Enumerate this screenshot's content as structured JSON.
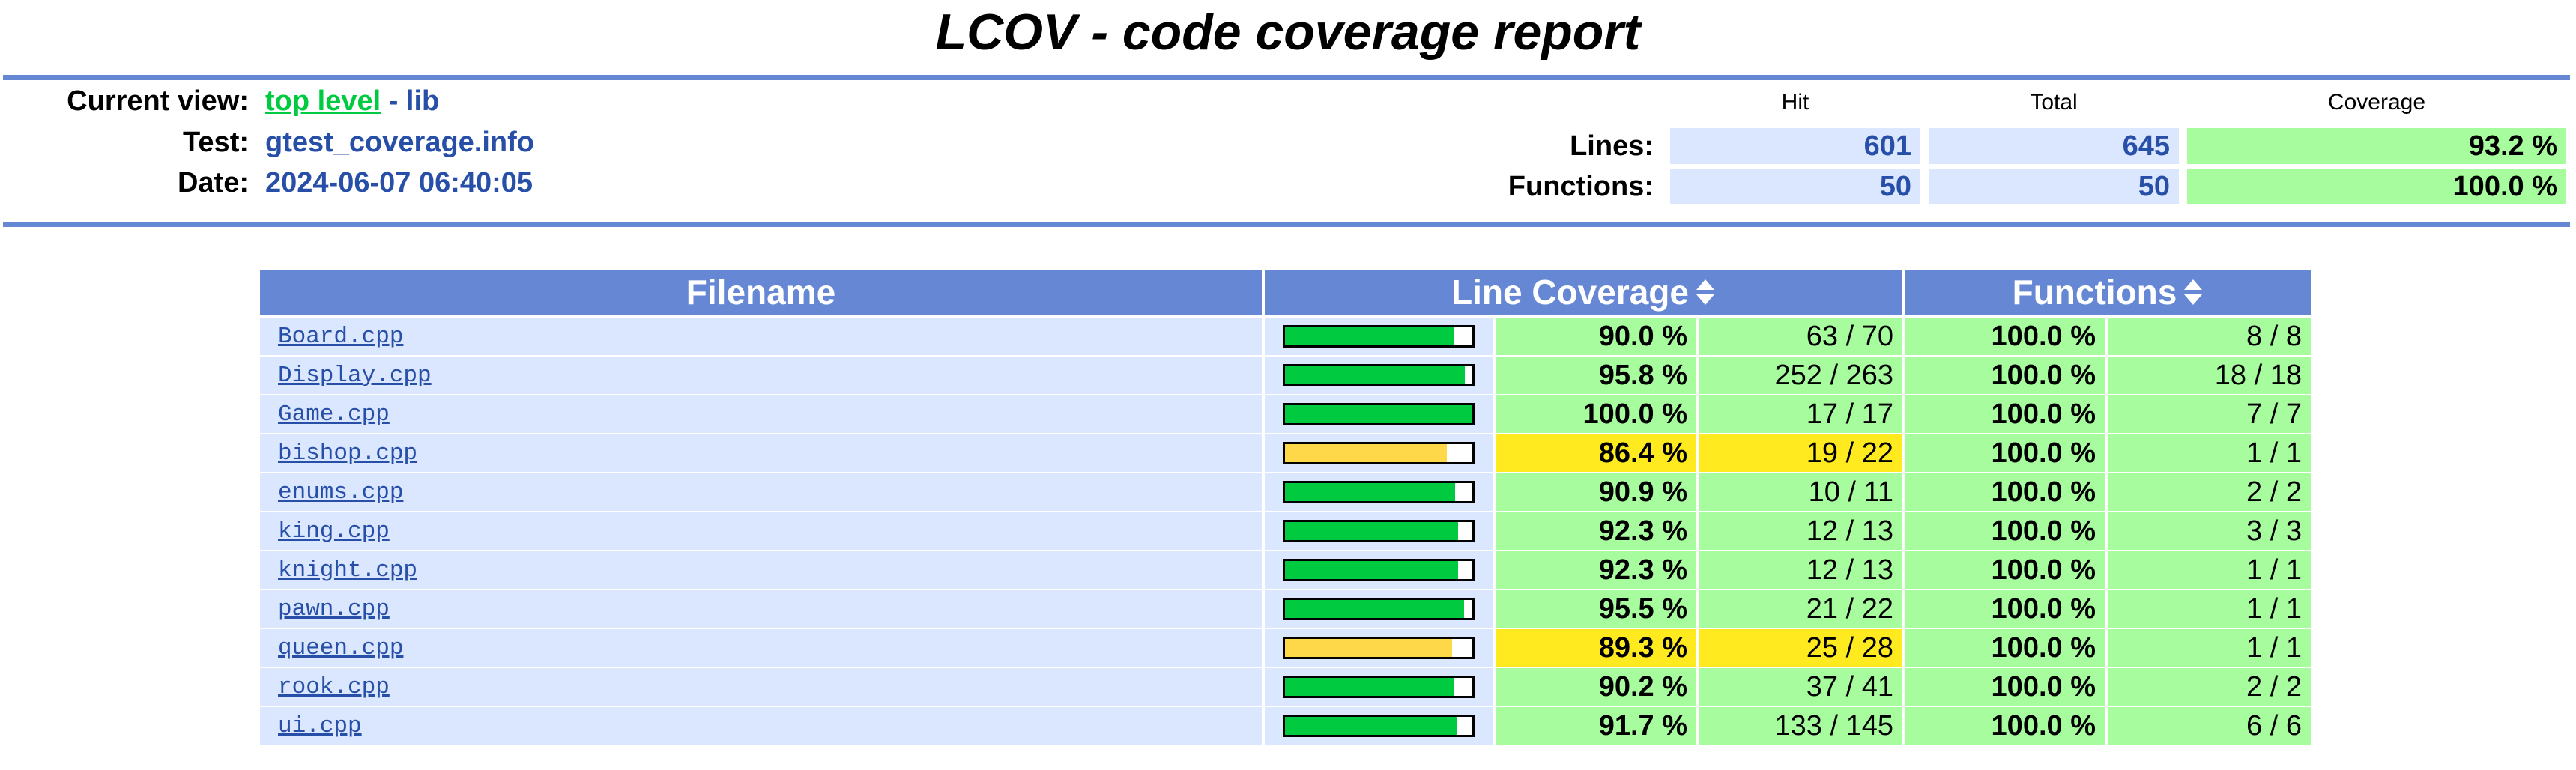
{
  "header": {
    "title": "LCOV - code coverage report",
    "current_view_label": "Current view:",
    "current_view_link": "top level",
    "current_view_rest": "- lib",
    "test_label": "Test:",
    "test_value": "gtest_coverage.info",
    "date_label": "Date:",
    "date_value": "2024-06-07 06:40:05"
  },
  "summary": {
    "columns": [
      "Hit",
      "Total",
      "Coverage"
    ],
    "rows": [
      {
        "label": "Lines:",
        "hit": "601",
        "total": "645",
        "coverage": "93.2 %"
      },
      {
        "label": "Functions:",
        "hit": "50",
        "total": "50",
        "coverage": "100.0 %"
      }
    ]
  },
  "table": {
    "columns": [
      "Filename",
      "Line Coverage",
      "Functions"
    ],
    "rows": [
      {
        "file": "Board.cpp",
        "line_pct": {
          "value": 90.0,
          "label": "90.0 %"
        },
        "line_count": "63 / 70",
        "func_pct": "100.0 %",
        "func_count": "8 / 8",
        "level": "high"
      },
      {
        "file": "Display.cpp",
        "line_pct": {
          "value": 95.8,
          "label": "95.8 %"
        },
        "line_count": "252 / 263",
        "func_pct": "100.0 %",
        "func_count": "18 / 18",
        "level": "high"
      },
      {
        "file": "Game.cpp",
        "line_pct": {
          "value": 100.0,
          "label": "100.0 %"
        },
        "line_count": "17 / 17",
        "func_pct": "100.0 %",
        "func_count": "7 / 7",
        "level": "high"
      },
      {
        "file": "bishop.cpp",
        "line_pct": {
          "value": 86.4,
          "label": "86.4 %"
        },
        "line_count": "19 / 22",
        "func_pct": "100.0 %",
        "func_count": "1 / 1",
        "level": "medium"
      },
      {
        "file": "enums.cpp",
        "line_pct": {
          "value": 90.9,
          "label": "90.9 %"
        },
        "line_count": "10 / 11",
        "func_pct": "100.0 %",
        "func_count": "2 / 2",
        "level": "high"
      },
      {
        "file": "king.cpp",
        "line_pct": {
          "value": 92.3,
          "label": "92.3 %"
        },
        "line_count": "12 / 13",
        "func_pct": "100.0 %",
        "func_count": "3 / 3",
        "level": "high"
      },
      {
        "file": "knight.cpp",
        "line_pct": {
          "value": 92.3,
          "label": "92.3 %"
        },
        "line_count": "12 / 13",
        "func_pct": "100.0 %",
        "func_count": "1 / 1",
        "level": "high"
      },
      {
        "file": "pawn.cpp",
        "line_pct": {
          "value": 95.5,
          "label": "95.5 %"
        },
        "line_count": "21 / 22",
        "func_pct": "100.0 %",
        "func_count": "1 / 1",
        "level": "high"
      },
      {
        "file": "queen.cpp",
        "line_pct": {
          "value": 89.3,
          "label": "89.3 %"
        },
        "line_count": "25 / 28",
        "func_pct": "100.0 %",
        "func_count": "1 / 1",
        "level": "medium"
      },
      {
        "file": "rook.cpp",
        "line_pct": {
          "value": 90.2,
          "label": "90.2 %"
        },
        "line_count": "37 / 41",
        "func_pct": "100.0 %",
        "func_count": "2 / 2",
        "level": "high"
      },
      {
        "file": "ui.cpp",
        "line_pct": {
          "value": 91.7,
          "label": "91.7 %"
        },
        "line_count": "133 / 145",
        "func_pct": "100.0 %",
        "func_count": "6 / 6",
        "level": "high"
      }
    ]
  }
}
